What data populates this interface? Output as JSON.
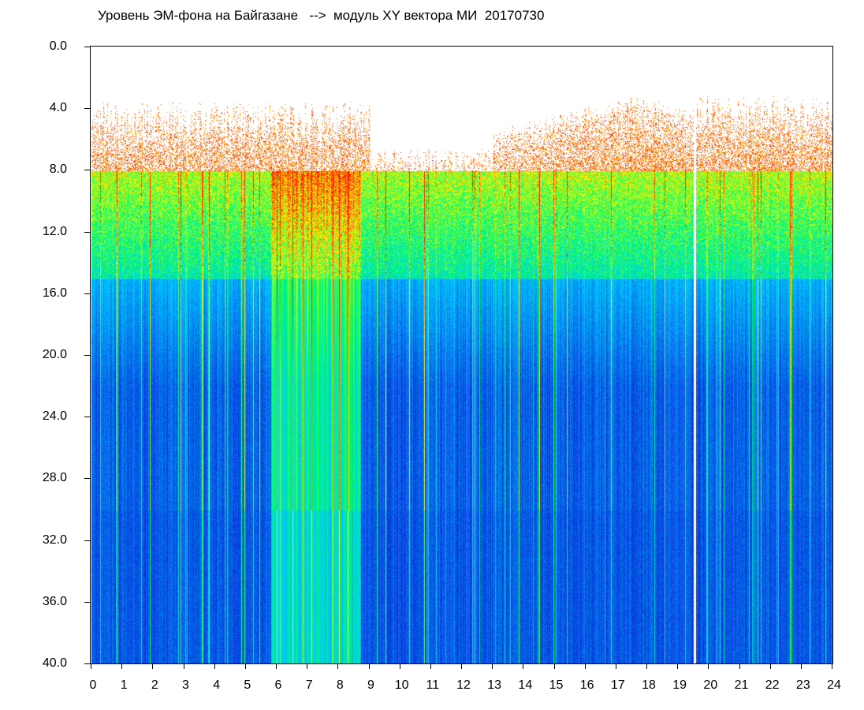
{
  "chart_data": {
    "type": "heatmap",
    "title": "Уровень ЭМ-фона на Байгазане   -->  модуль XY вектора МИ  20170730",
    "xlabel": "",
    "ylabel": "",
    "xlim": [
      0,
      24
    ],
    "ylim": [
      0,
      40
    ],
    "y_inverted": true,
    "x_ticks": [
      "0",
      "1",
      "2",
      "3",
      "4",
      "5",
      "6",
      "7",
      "8",
      "9",
      "10",
      "11",
      "12",
      "13",
      "14",
      "15",
      "16",
      "17",
      "18",
      "19",
      "20",
      "21",
      "22",
      "23",
      "24"
    ],
    "y_ticks": [
      "0.0",
      "4.0",
      "8.0",
      "12.0",
      "16.0",
      "20.0",
      "24.0",
      "28.0",
      "32.0",
      "36.0",
      "40.0"
    ],
    "colormap": [
      "#0a1fd6",
      "#00c8ff",
      "#00ff66",
      "#ffff00",
      "#ff1a00"
    ],
    "bands": [
      {
        "y_from": 0.0,
        "y_to": 8.0,
        "level": "sparse-red"
      },
      {
        "y_from": 8.0,
        "y_to": 15.0,
        "level": "cyan-green"
      },
      {
        "y_from": 15.0,
        "y_to": 40.0,
        "level": "blue"
      }
    ],
    "gap_hours": [
      19.5
    ]
  }
}
